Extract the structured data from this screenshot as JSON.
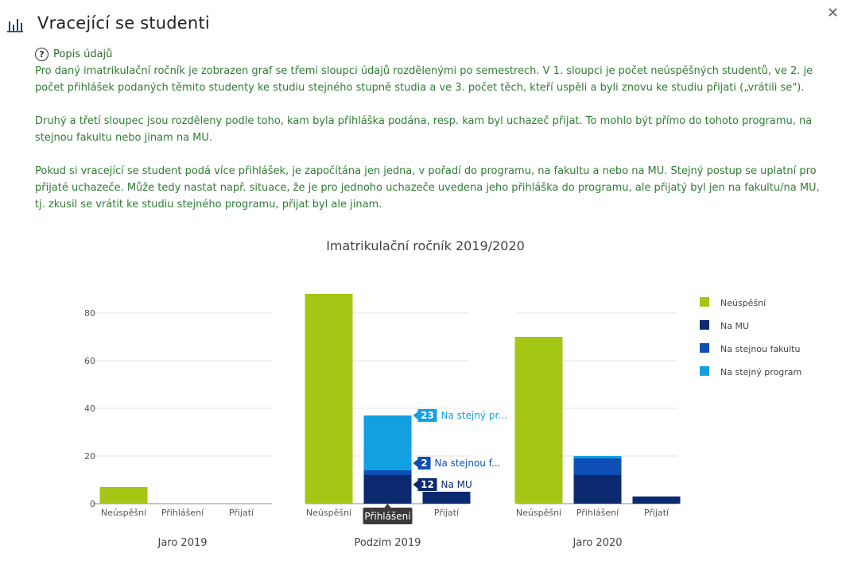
{
  "dialog": {
    "title": "Vracející se studenti",
    "close_icon": "close-icon",
    "chart_icon": "bar-chart-icon"
  },
  "description": {
    "toggle_label": "Popis údajů",
    "paragraphs": [
      "Pro daný imatrikulační ročník je zobrazen graf se třemi sloupci údajů rozdělenými po semestrech. V 1. sloupci je počet neúspěšných studentů, ve 2. je počet přihlášek podaných těmito studenty ke studiu stejného stupně studia a ve 3. počet těch, kteří uspěli a byli znovu ke studiu přijati („vrátili se\").",
      "Druhý a třetí sloupec jsou rozděleny podle toho, kam byla přihláška podána, resp. kam byl uchazeč přijat. To mohlo být přímo do tohoto programu, na stejnou fakultu nebo jinam na MU.",
      "Pokud si vracející se student podá více přihlášek, je započítána jen jedna, v pořadí do programu, na fakultu a nebo na MU. Stejný postup se uplatní pro přijaté uchazeče. Může tedy nastat např. situace, že je pro jednoho uchazeče uvedena jeho přihláška do programu, ale přijatý byl jen na fakultu/na MU, tj. zkusil se vrátit ke studiu stejného programu, přijat byl ale jinam."
    ]
  },
  "chart_data": {
    "type": "bar",
    "stacked": true,
    "title": "Imatrikulační ročník 2019/2020",
    "ylim": [
      0,
      90
    ],
    "yticks": [
      0,
      20,
      40,
      60,
      80
    ],
    "grid": true,
    "legend_position": "right",
    "categories": [
      "Neúspěšní",
      "Přihlášení",
      "Přijatí"
    ],
    "series": [
      {
        "name": "Neúspěšní",
        "color": "#a4c614"
      },
      {
        "name": "Na MU",
        "color": "#0b2a6f"
      },
      {
        "name": "Na stejnou fakultu",
        "color": "#0d4fb4"
      },
      {
        "name": "Na stejný program",
        "color": "#12a0e1"
      }
    ],
    "panels": [
      {
        "label": "Jaro 2019",
        "values": {
          "Neúspěšní": [
            7,
            0,
            0
          ],
          "Na MU": [
            0,
            0,
            0
          ],
          "Na stejnou fakultu": [
            0,
            0,
            0
          ],
          "Na stejný program": [
            0,
            0,
            0
          ]
        }
      },
      {
        "label": "Podzim 2019",
        "values": {
          "Neúspěšní": [
            88,
            0,
            0
          ],
          "Na MU": [
            0,
            12,
            5
          ],
          "Na stejnou fakultu": [
            0,
            2,
            0
          ],
          "Na stejný program": [
            0,
            23,
            0
          ]
        }
      },
      {
        "label": "Jaro 2020",
        "values": {
          "Neúspěšní": [
            70,
            0,
            0
          ],
          "Na MU": [
            0,
            12,
            3
          ],
          "Na stejnou fakultu": [
            0,
            7,
            0
          ],
          "Na stejný program": [
            0,
            1,
            0
          ]
        }
      }
    ],
    "hover": {
      "panel": 1,
      "category": 1,
      "tooltip_title": "Přihlášení",
      "labels": [
        {
          "value": "23",
          "text": "Na stejný pr...",
          "series": "Na stejný program"
        },
        {
          "value": "2",
          "text": "Na stejnou f...",
          "series": "Na stejnou fakultu"
        },
        {
          "value": "12",
          "text": "Na MU",
          "series": "Na MU"
        }
      ]
    }
  }
}
